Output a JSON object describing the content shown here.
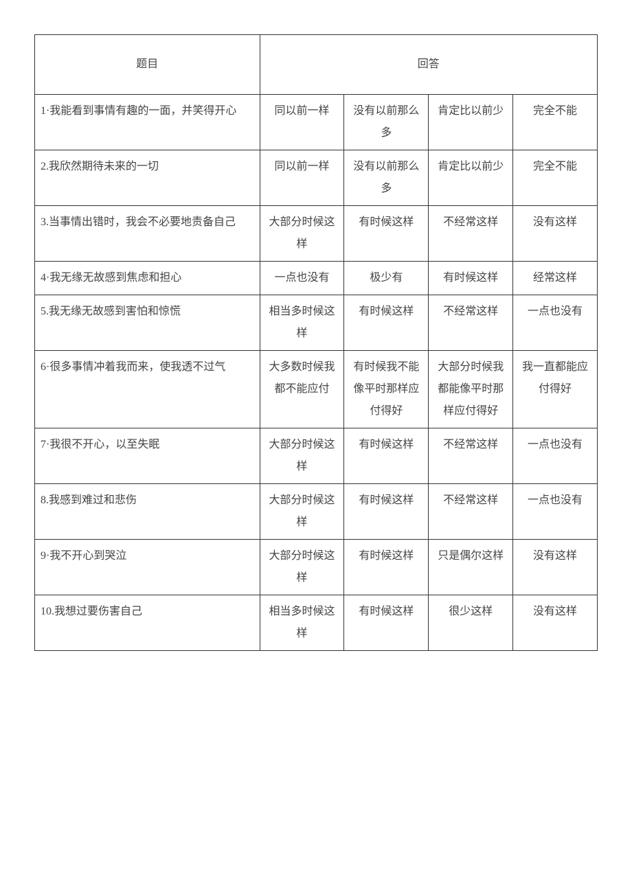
{
  "table": {
    "header_question": "题目",
    "header_answer": "回答",
    "col_widths": [
      "40%",
      "15%",
      "15%",
      "15%",
      "15%"
    ],
    "border_color": "#333333",
    "text_color": "#444444",
    "font_size": 16,
    "line_height": 2,
    "rows": [
      {
        "question": "1·我能看到事情有趣的一面，并笑得开心",
        "answers": [
          "同以前一样",
          "没有以前那么多",
          "肯定比以前少",
          "完全不能"
        ]
      },
      {
        "question": "2.我欣然期待未来的一切",
        "answers": [
          "同以前一样",
          "没有以前那么多",
          "肯定比以前少",
          "完全不能"
        ]
      },
      {
        "question": "3.当事情出错时，我会不必要地责备自己",
        "answers": [
          "大部分时候这样",
          "有时候这样",
          "不经常这样",
          "没有这样"
        ]
      },
      {
        "question": "4·我无缘无故感到焦虑和担心",
        "answers": [
          "一点也没有",
          "极少有",
          "有时候这样",
          "经常这样"
        ]
      },
      {
        "question": "5.我无缘无故感到害怕和惊慌",
        "answers": [
          "相当多时候这样",
          "有时候这样",
          "不经常这样",
          "一点也没有"
        ]
      },
      {
        "question": "6·很多事情冲着我而来，使我透不过气",
        "answers": [
          "大多数时候我都不能应付",
          "有时候我不能像平时那样应付得好",
          "大部分时候我都能像平时那样应付得好",
          "我一直都能应付得好"
        ]
      },
      {
        "question": "7·我很不开心，以至失眠",
        "answers": [
          "大部分时候这样",
          "有时候这样",
          "不经常这样",
          "一点也没有"
        ]
      },
      {
        "question": "8.我感到难过和悲伤",
        "answers": [
          "大部分时候这样",
          "有时候这样",
          "不经常这样",
          "一点也没有"
        ]
      },
      {
        "question": "9·我不开心到哭泣",
        "answers": [
          "大部分时候这样",
          "有时候这样",
          "只是偶尔这样",
          "没有这样"
        ]
      },
      {
        "question": "10.我想过要伤害自己",
        "answers": [
          "相当多时候这样",
          "有时候这样",
          "很少这样",
          "没有这样"
        ]
      }
    ]
  }
}
